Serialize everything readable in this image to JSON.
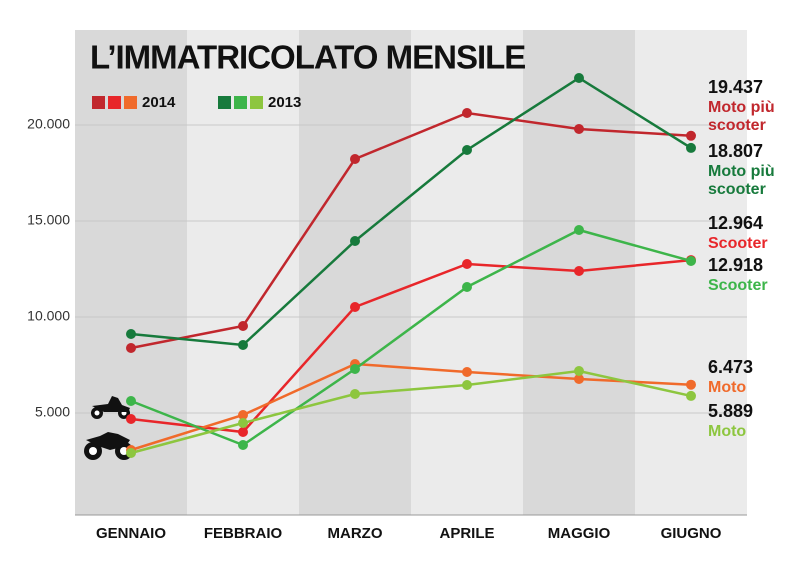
{
  "chart_data": {
    "type": "line",
    "title": "L’IMMATRICOLATO MENSILE",
    "categories": [
      "GENNAIO",
      "FEBBRAIO",
      "MARZO",
      "APRILE",
      "MAGGIO",
      "GIUGNO"
    ],
    "ylim": [
      0,
      25000
    ],
    "yticks": [
      {
        "value": 5000,
        "label": "5.000"
      },
      {
        "value": 10000,
        "label": "10.000"
      },
      {
        "value": 15000,
        "label": "15.000"
      },
      {
        "value": 20000,
        "label": "20.000"
      }
    ],
    "grid": true,
    "groups": [
      {
        "name": "2014",
        "series": [
          {
            "name": "Moto più scooter",
            "color": "#c1272d",
            "values": [
              8385,
              9531,
              18229,
              20625,
              19792,
              19437
            ],
            "value_labels": [
              null,
              null,
              null,
              null,
              null,
              "19.437"
            ]
          },
          {
            "name": "Scooter",
            "color": "#e8262a",
            "values": [
              4688,
              4010,
              10521,
              12760,
              12396,
              12964
            ],
            "value_labels": [
              null,
              null,
              null,
              null,
              null,
              "12.964"
            ]
          },
          {
            "name": "Moto",
            "color": "#f06a2b",
            "values": [
              3073,
              4896,
              7552,
              7135,
              6771,
              6473
            ],
            "value_labels": [
              null,
              null,
              null,
              null,
              null,
              "6.473"
            ]
          }
        ]
      },
      {
        "name": "2013",
        "series": [
          {
            "name": "Moto più scooter",
            "color": "#177a3c",
            "values": [
              9115,
              8542,
              13958,
              18698,
              22448,
              18807
            ],
            "value_labels": [
              null,
              null,
              null,
              null,
              null,
              "18.807"
            ]
          },
          {
            "name": "Scooter",
            "color": "#3db54a",
            "values": [
              5625,
              3333,
              7292,
              11563,
              14531,
              12918
            ],
            "value_labels": [
              null,
              null,
              null,
              null,
              null,
              "12.918"
            ]
          },
          {
            "name": "Moto",
            "color": "#8dc63f",
            "values": [
              2917,
              4479,
              5990,
              6458,
              7188,
              5889
            ],
            "value_labels": [
              null,
              null,
              null,
              null,
              null,
              "5.889"
            ]
          }
        ]
      }
    ]
  }
}
